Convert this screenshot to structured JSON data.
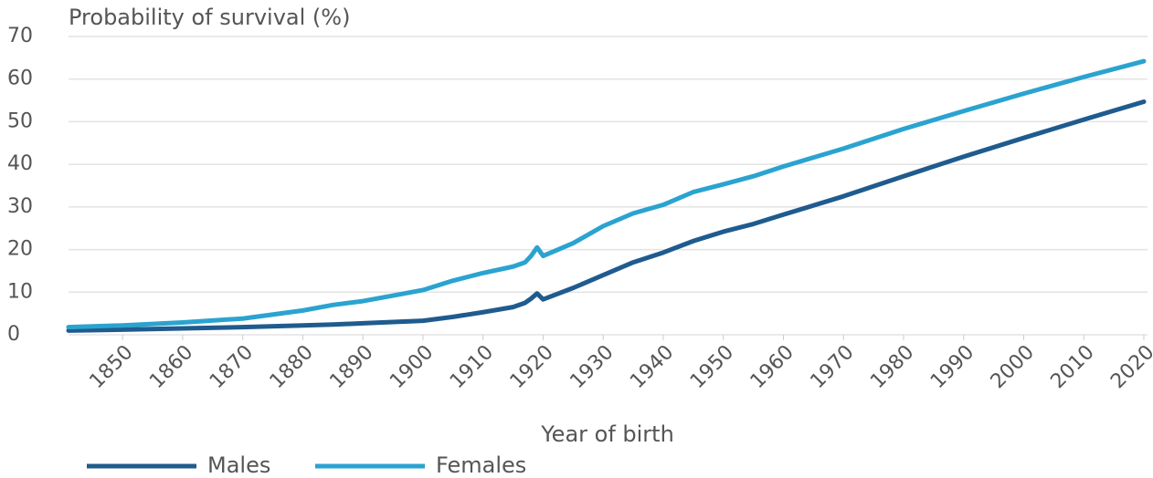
{
  "chart_data": {
    "type": "line",
    "y_label": "Probability of survival (%)",
    "x_label": "Year of birth",
    "x": [
      1841,
      1850,
      1860,
      1870,
      1880,
      1885,
      1890,
      1895,
      1900,
      1905,
      1910,
      1915,
      1917,
      1918,
      1919,
      1920,
      1925,
      1930,
      1935,
      1940,
      1945,
      1950,
      1955,
      1960,
      1970,
      1980,
      1990,
      2000,
      2010,
      2020
    ],
    "series": [
      {
        "name": "Males",
        "color": "#1f5b8e",
        "values": [
          1,
          1.2,
          1.5,
          1.8,
          2.2,
          2.4,
          2.7,
          3.0,
          3.3,
          4.2,
          5.3,
          6.5,
          7.5,
          8.5,
          9.7,
          8.3,
          11,
          14,
          17,
          19.3,
          22,
          24.2,
          26,
          28.2,
          32.5,
          37.2,
          41.8,
          46.2,
          50.5,
          54.7
        ]
      },
      {
        "name": "Females",
        "color": "#2ba3d0",
        "values": [
          1.8,
          2.2,
          2.9,
          3.8,
          5.7,
          7,
          7.9,
          9.2,
          10.5,
          12.7,
          14.5,
          16,
          17,
          18.5,
          20.5,
          18.5,
          21.5,
          25.5,
          28.5,
          30.5,
          33.5,
          35.3,
          37.2,
          39.5,
          43.7,
          48.3,
          52.5,
          56.6,
          60.5,
          64.2
        ]
      }
    ],
    "xlim": [
      1841,
      2020
    ],
    "xticks": [
      1850,
      1860,
      1870,
      1880,
      1890,
      1900,
      1910,
      1920,
      1930,
      1940,
      1950,
      1960,
      1970,
      1980,
      1990,
      2000,
      2010,
      2020
    ],
    "ylim": [
      0,
      70
    ],
    "yticks": [
      0,
      10,
      20,
      30,
      40,
      50,
      60,
      70
    ],
    "grid": true
  }
}
